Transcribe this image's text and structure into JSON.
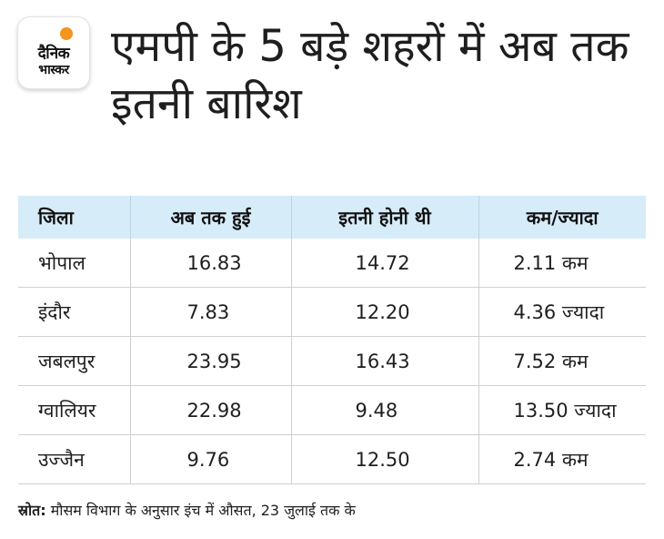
{
  "brand": {
    "line1": "दैनिक",
    "line2": "भास्कर",
    "accent_color": "#f7941d"
  },
  "title": "एमपी के 5 बड़े शहरों में अब तक इतनी बारिश",
  "table": {
    "header_bg": "#d6ecf9",
    "columns": [
      "जिला",
      "अब तक हुई",
      "इतनी होनी थी",
      "कम/ज्यादा"
    ],
    "rows": [
      [
        "भोपाल",
        "16.83",
        "14.72",
        "2.11 कम"
      ],
      [
        "इंदौर",
        "7.83",
        "12.20",
        "4.36 ज्यादा"
      ],
      [
        "जबलपुर",
        "23.95",
        "16.43",
        "7.52 कम"
      ],
      [
        "ग्वालियर",
        "22.98",
        "9.48",
        "13.50 ज्यादा"
      ],
      [
        "उज्जैन",
        "9.76",
        "12.50",
        "2.74 कम"
      ]
    ]
  },
  "source": {
    "label": "स्रोत:",
    "text": "मौसम विभाग के अनुसार इंच में औसत, 23 जुलाई तक के"
  }
}
